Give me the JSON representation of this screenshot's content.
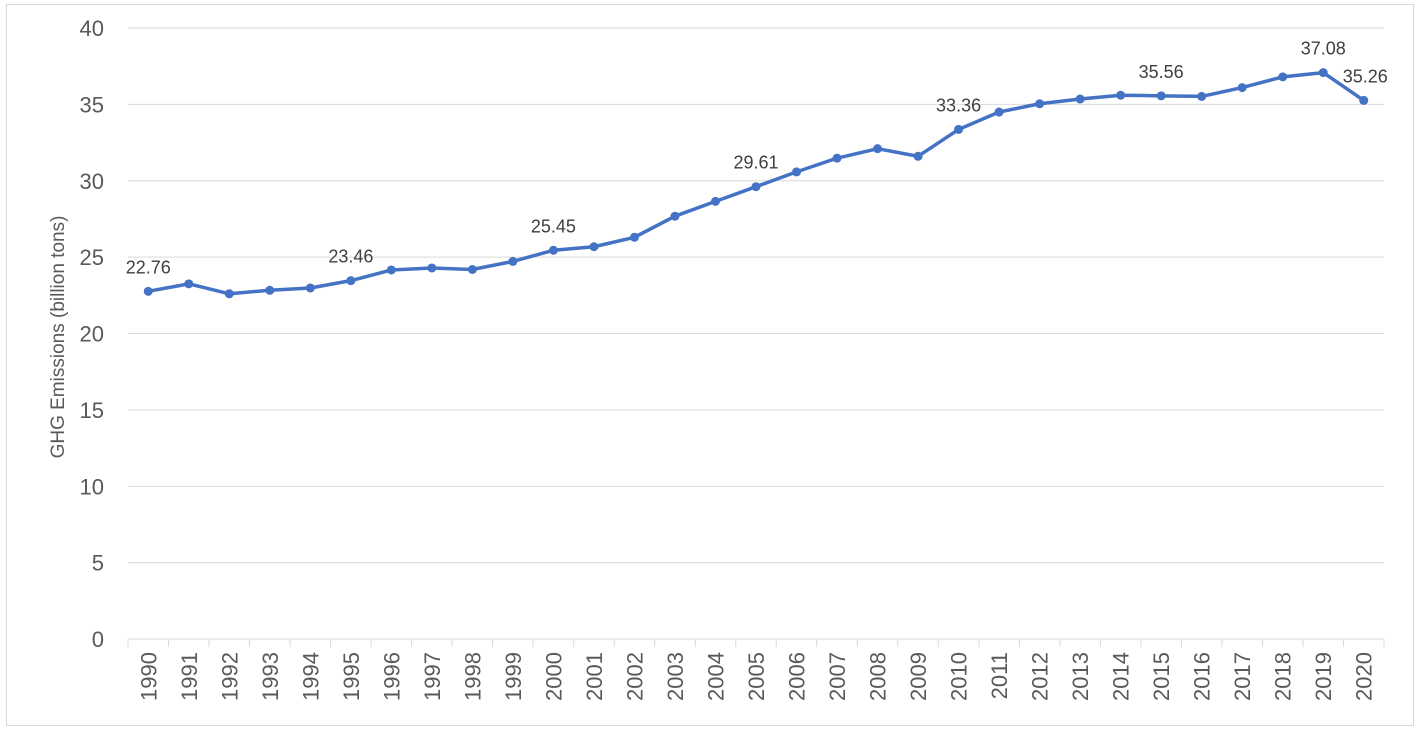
{
  "chart_data": {
    "type": "line",
    "title": "",
    "xlabel": "",
    "ylabel": "GHG Emissions (billion tons)",
    "ylim": [
      0,
      40
    ],
    "yticks": [
      0,
      5,
      10,
      15,
      20,
      25,
      30,
      35,
      40
    ],
    "grid": "horizontal",
    "legend": "none",
    "colors": {
      "line": "#4472c4",
      "grid": "#d9d9d9",
      "text": "#595959",
      "label": "#404040"
    },
    "categories": [
      "1990",
      "1991",
      "1992",
      "1993",
      "1994",
      "1995",
      "1996",
      "1997",
      "1998",
      "1999",
      "2000",
      "2001",
      "2002",
      "2003",
      "2004",
      "2005",
      "2006",
      "2007",
      "2008",
      "2009",
      "2010",
      "2011",
      "2012",
      "2013",
      "2014",
      "2015",
      "2016",
      "2017",
      "2018",
      "2019",
      "2020"
    ],
    "series": [
      {
        "values": [
          22.76,
          23.25,
          22.6,
          22.83,
          22.98,
          23.46,
          24.16,
          24.29,
          24.19,
          24.72,
          25.45,
          25.68,
          26.3,
          27.68,
          28.65,
          29.61,
          30.58,
          31.48,
          32.1,
          31.6,
          33.36,
          34.5,
          35.04,
          35.35,
          35.6,
          35.56,
          35.52,
          36.1,
          36.8,
          37.08,
          35.26
        ],
        "labels": [
          {
            "index": 0,
            "text": "22.76"
          },
          {
            "index": 5,
            "text": "23.46"
          },
          {
            "index": 10,
            "text": "25.45"
          },
          {
            "index": 15,
            "text": "29.61"
          },
          {
            "index": 20,
            "text": "33.36"
          },
          {
            "index": 25,
            "text": "35.56"
          },
          {
            "index": 29,
            "text": "37.08"
          },
          {
            "index": 30,
            "text": "35.26"
          }
        ]
      }
    ]
  }
}
